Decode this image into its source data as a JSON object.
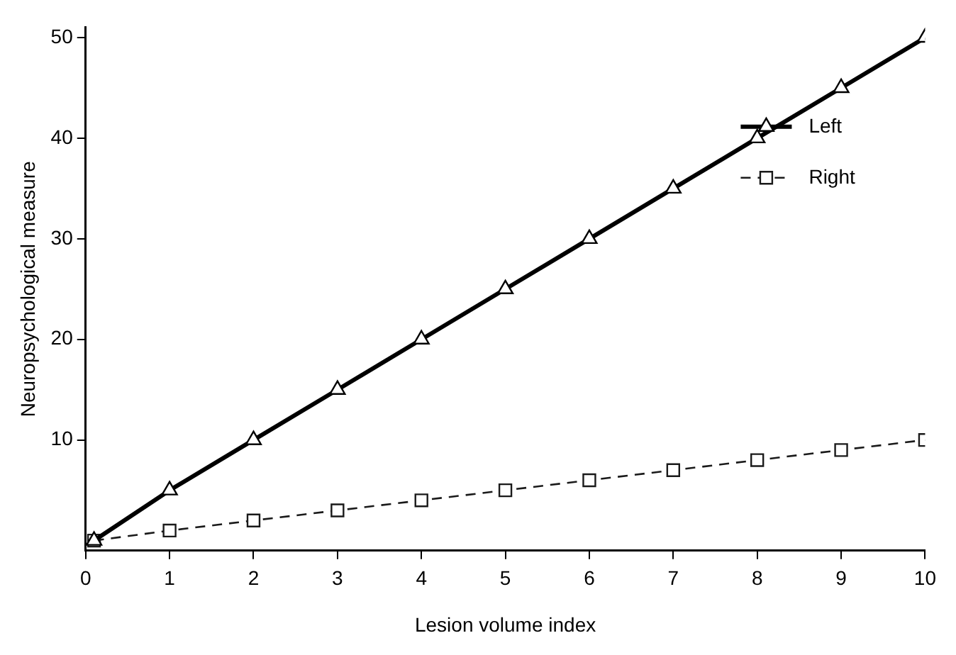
{
  "chart_data": {
    "type": "line",
    "xlabel": "Lesion volume index",
    "ylabel": "Neuropsychological measure",
    "xlim": [
      0,
      10
    ],
    "xticks": [
      0,
      1,
      2,
      3,
      4,
      5,
      6,
      7,
      8,
      9,
      10
    ],
    "ylim": [
      -1,
      51
    ],
    "yticks": [
      10,
      20,
      30,
      40,
      50
    ],
    "grid": false,
    "legend": "top right",
    "series": [
      {
        "name": "Left",
        "color": "#000000",
        "marker": "triangle",
        "line_style": "solid",
        "x": [
          0.1,
          1,
          2,
          3,
          4,
          5,
          6,
          7,
          8,
          9,
          10
        ],
        "values": [
          0,
          5,
          10,
          15,
          20,
          25,
          30,
          35,
          40,
          45,
          50
        ]
      },
      {
        "name": "Right",
        "color": "#1a1a1a",
        "marker": "square",
        "line_style": "dashed",
        "x": [
          0.1,
          1,
          2,
          3,
          4,
          5,
          6,
          7,
          8,
          9,
          10
        ],
        "values": [
          0,
          1,
          2,
          3,
          4,
          5,
          6,
          7,
          8,
          9,
          10
        ]
      }
    ]
  }
}
